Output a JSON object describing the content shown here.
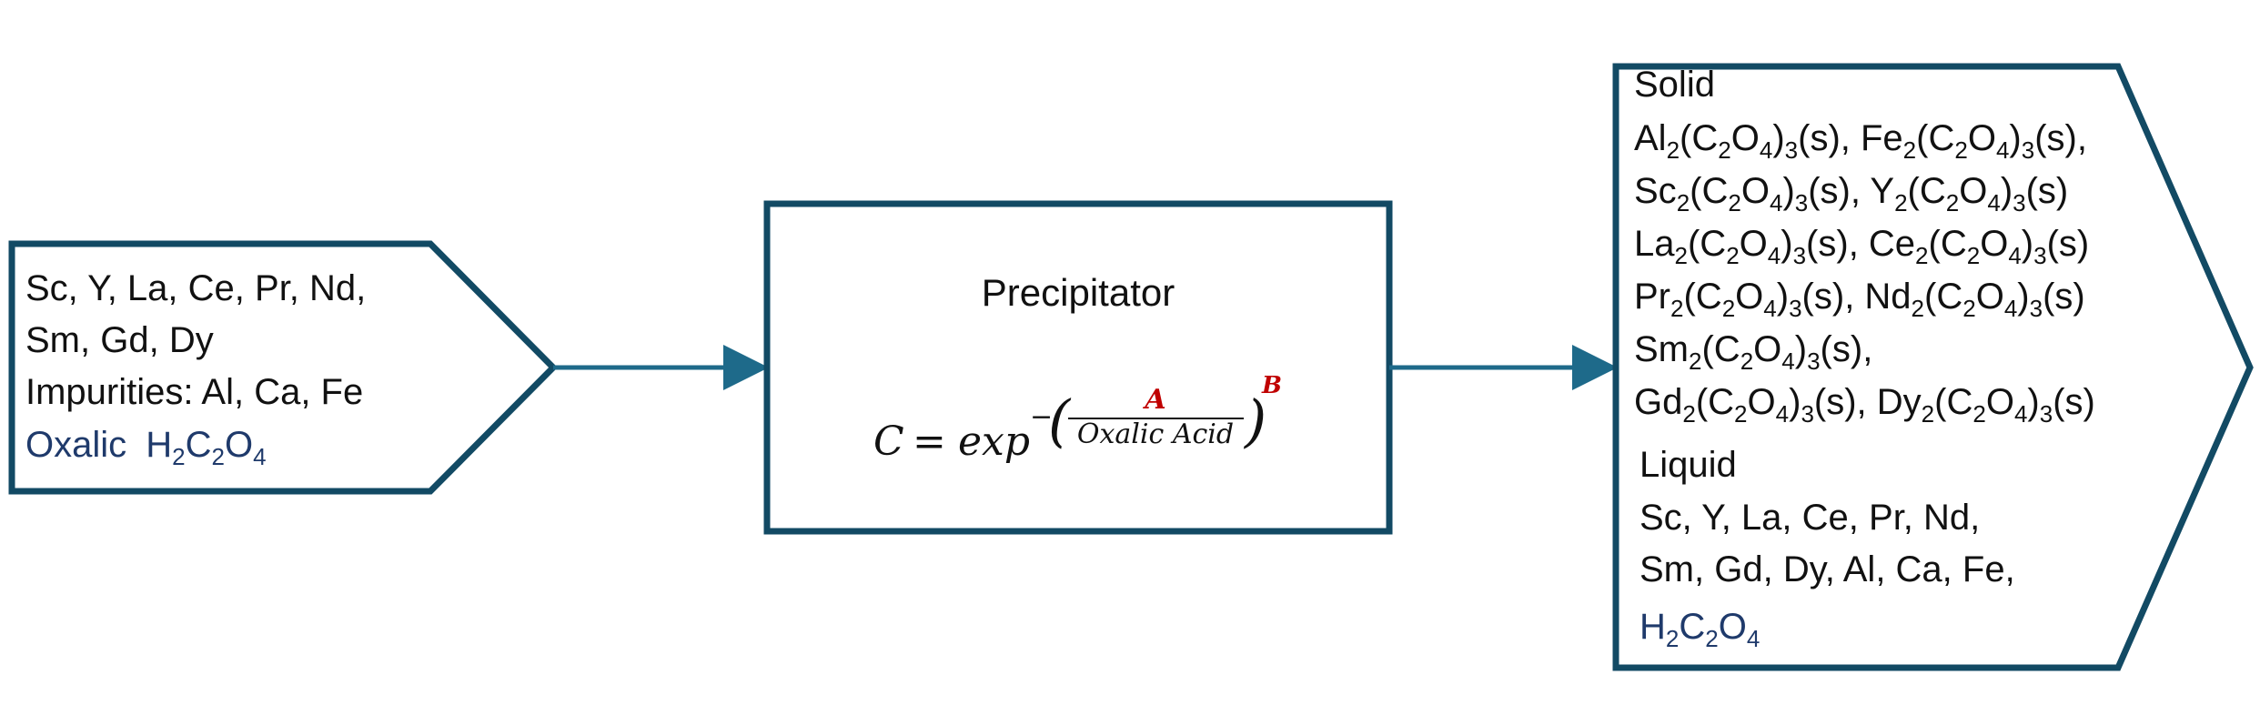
{
  "colors": {
    "stroke": "#124a64",
    "arrow": "#1e6a8a",
    "text": "#111111",
    "blue_text": "#1f3a6b",
    "red": "#c00000"
  },
  "input": {
    "line1": "Sc, Y, La, Ce, Pr, Nd,",
    "line2": "Sm, Gd, Dy",
    "line3": "Impurities: Al, Ca, Fe",
    "oxalic_word": "Oxalic",
    "oxalic_formula": {
      "h": "H",
      "h_sub": "2",
      "c": "C",
      "c_sub": "2",
      "o": "O",
      "o_sub": "4"
    }
  },
  "precipitator": {
    "title": "Precipitator",
    "equation": {
      "lhs": "C",
      "equals": "=",
      "func": "exp",
      "minus": "−",
      "numerator": "A",
      "denominator": "Oxalic Acid",
      "exponent": "B",
      "paren_open": "(",
      "paren_close": ")"
    }
  },
  "output": {
    "solid_heading": "Solid",
    "solid_lines": [
      [
        [
          "Al",
          "2"
        ],
        [
          "(C",
          "2"
        ],
        [
          "O",
          "4"
        ],
        [
          ")",
          "3"
        ],
        [
          "(s), Fe",
          "2"
        ],
        [
          "(C",
          "2"
        ],
        [
          "O",
          "4"
        ],
        [
          ")",
          "3"
        ],
        [
          "(s),",
          ""
        ]
      ],
      [
        [
          "Sc",
          "2"
        ],
        [
          "(C",
          "2"
        ],
        [
          "O",
          "4"
        ],
        [
          ")",
          "3"
        ],
        [
          "(s), Y",
          "2"
        ],
        [
          "(C",
          "2"
        ],
        [
          "O",
          "4"
        ],
        [
          ")",
          "3"
        ],
        [
          "(s)",
          ""
        ]
      ],
      [
        [
          "La",
          "2"
        ],
        [
          "(C",
          "2"
        ],
        [
          "O",
          "4"
        ],
        [
          ")",
          "3"
        ],
        [
          "(s), Ce",
          "2"
        ],
        [
          "(C",
          "2"
        ],
        [
          "O",
          "4"
        ],
        [
          ")",
          "3"
        ],
        [
          "(s)",
          ""
        ]
      ],
      [
        [
          "Pr",
          "2"
        ],
        [
          "(C",
          "2"
        ],
        [
          "O",
          "4"
        ],
        [
          ")",
          "3"
        ],
        [
          "(s), Nd",
          "2"
        ],
        [
          "(C",
          "2"
        ],
        [
          "O",
          "4"
        ],
        [
          ")",
          "3"
        ],
        [
          "(s)",
          ""
        ]
      ],
      [
        [
          "Sm",
          "2"
        ],
        [
          "(C",
          "2"
        ],
        [
          "O",
          "4"
        ],
        [
          ")",
          "3"
        ],
        [
          "(s),",
          ""
        ]
      ],
      [
        [
          "Gd",
          "2"
        ],
        [
          "(C",
          "2"
        ],
        [
          "O",
          "4"
        ],
        [
          ")",
          "3"
        ],
        [
          "(s), Dy",
          "2"
        ],
        [
          "(C",
          "2"
        ],
        [
          "O",
          "4"
        ],
        [
          ")",
          "3"
        ],
        [
          "(s)",
          ""
        ]
      ]
    ],
    "liquid_heading": "Liquid",
    "liquid_line1": "Sc, Y, La, Ce, Pr, Nd,",
    "liquid_line2": "Sm, Gd, Dy, Al, Ca, Fe,",
    "liquid_formula": {
      "h": "H",
      "h_sub": "2",
      "c": "C",
      "c_sub": "2",
      "o": "O",
      "o_sub": "4"
    }
  }
}
